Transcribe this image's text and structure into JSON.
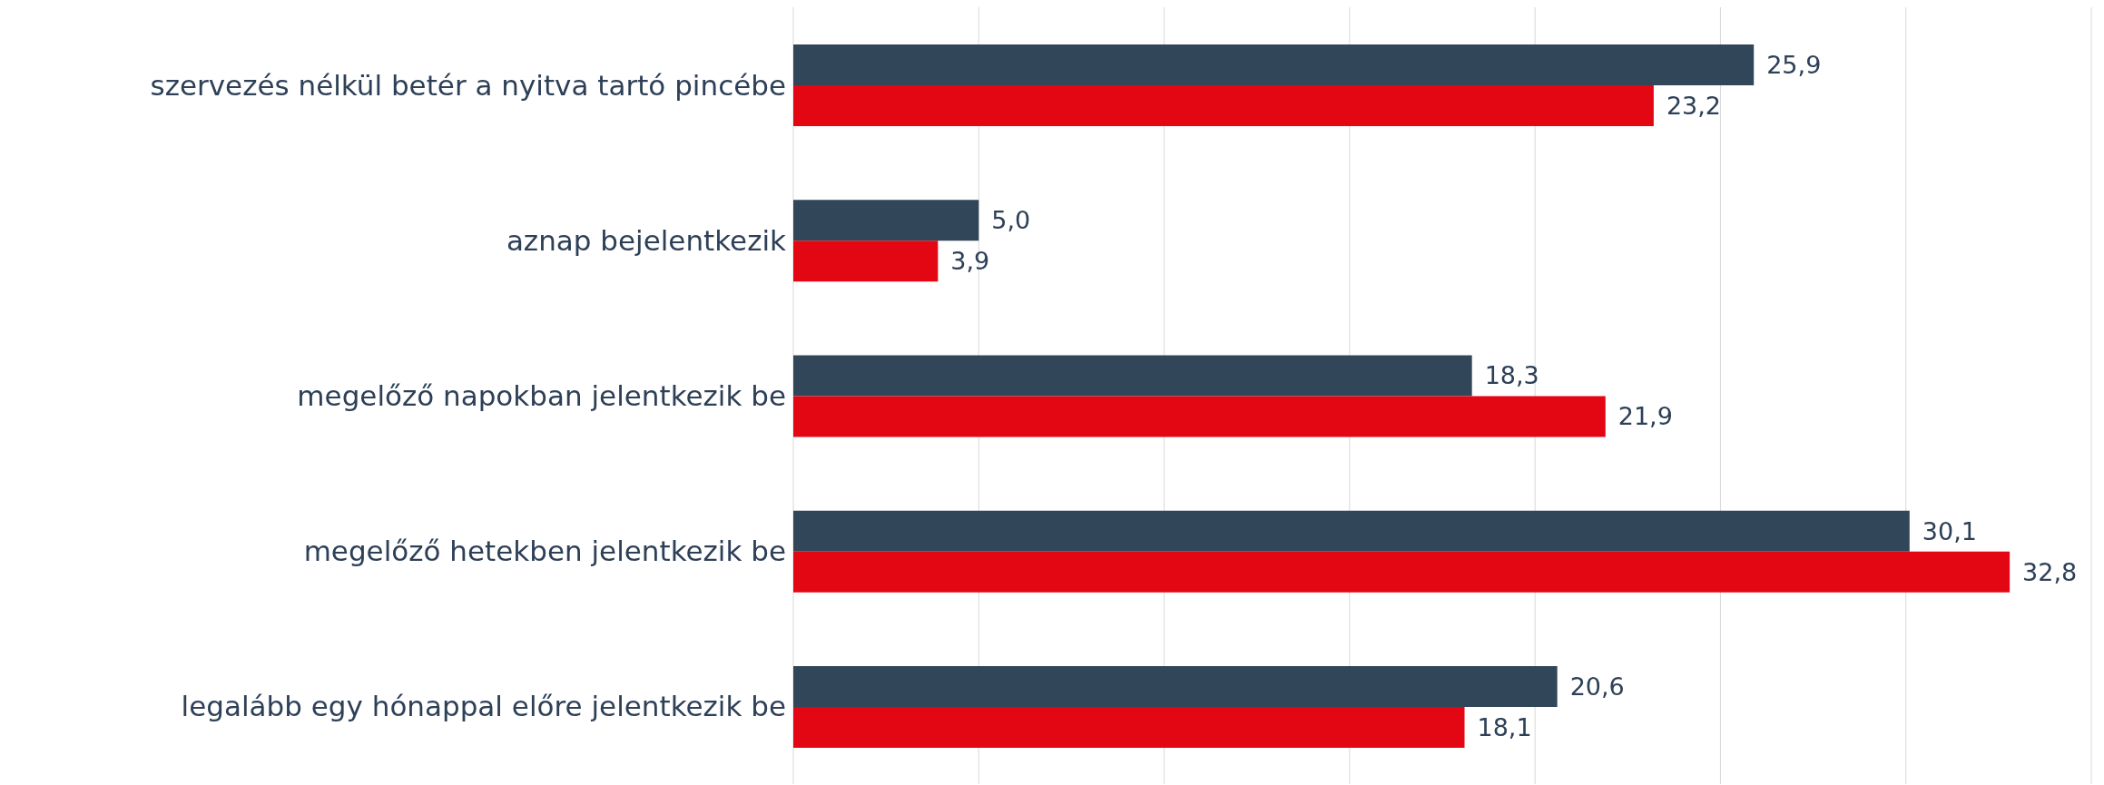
{
  "chart_data": {
    "type": "bar",
    "orientation": "horizontal",
    "categories": [
      "szervezés nélkül betér a nyitva tartó pincébe",
      "aznap bejelentkezik",
      "megelőző napokban jelentkezik be",
      "megelőző hetekben jelentkezik be",
      "legalább egy hónappal előre jelentkezik be"
    ],
    "series": [
      {
        "color": "#314659",
        "values": [
          25.9,
          5.0,
          18.3,
          30.1,
          20.6
        ],
        "value_labels": [
          "25,9",
          "5,0",
          "18,3",
          "30,1",
          "20,6"
        ]
      },
      {
        "color": "#e30613",
        "values": [
          23.2,
          3.9,
          21.9,
          32.8,
          18.1
        ],
        "value_labels": [
          "23,2",
          "3,9",
          "21,9",
          "32,8",
          "18,1"
        ]
      }
    ],
    "xlim": [
      0,
      35
    ],
    "xticks": [
      {
        "value": 0,
        "label": null
      },
      {
        "value": 5,
        "label": null
      },
      {
        "value": 10,
        "label": null
      },
      {
        "value": 15,
        "label": null
      },
      {
        "value": 20,
        "label": null
      },
      {
        "value": 25,
        "label": null
      },
      {
        "value": 30,
        "label": null
      },
      {
        "value": 35,
        "label": null
      }
    ],
    "grid": "x",
    "tick_labels": "y"
  }
}
